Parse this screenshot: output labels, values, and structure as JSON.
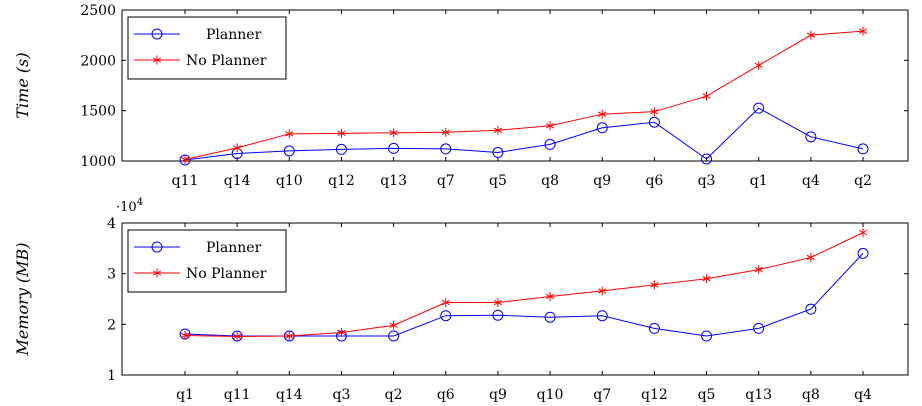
{
  "colors": {
    "planner": "#0000ff",
    "no_planner": "#ff0000",
    "axis": "#000000"
  },
  "chart_data": [
    {
      "type": "line",
      "ylabel": "Time (s)",
      "ylim": [
        1000,
        2500
      ],
      "yticks": [
        1000,
        1500,
        2000,
        2500
      ],
      "ytick_labels": [
        "1000",
        "1500",
        "2000",
        "2500"
      ],
      "y_exponent_label": "",
      "categories": [
        "q11",
        "q14",
        "q10",
        "q12",
        "q13",
        "q7",
        "q5",
        "q8",
        "q9",
        "q6",
        "q3",
        "q1",
        "q4",
        "q2"
      ],
      "legend_position": "top-left",
      "series": [
        {
          "name": "Planner",
          "marker": "circle",
          "color": "#0000ff",
          "values": [
            1010,
            1075,
            1100,
            1115,
            1125,
            1120,
            1085,
            1165,
            1330,
            1385,
            1020,
            1525,
            1240,
            1120
          ]
        },
        {
          "name": "No Planner",
          "marker": "star",
          "color": "#ff0000",
          "values": [
            1015,
            1130,
            1270,
            1275,
            1280,
            1285,
            1305,
            1350,
            1465,
            1490,
            1645,
            1950,
            2250,
            2290
          ]
        }
      ]
    },
    {
      "type": "line",
      "ylabel": "Memory (MB)",
      "ylim": [
        10000,
        40000
      ],
      "yticks": [
        10000,
        20000,
        30000,
        40000
      ],
      "ytick_labels": [
        "1",
        "2",
        "3",
        "4"
      ],
      "y_exponent_label": "·10",
      "y_exponent_power": "4",
      "categories": [
        "q1",
        "q11",
        "q14",
        "q3",
        "q2",
        "q6",
        "q9",
        "q10",
        "q7",
        "q12",
        "q5",
        "q13",
        "q8",
        "q4"
      ],
      "legend_position": "top-left",
      "series": [
        {
          "name": "Planner",
          "marker": "circle",
          "color": "#0000ff",
          "values": [
            18100,
            17700,
            17700,
            17700,
            17700,
            21700,
            21800,
            21400,
            21700,
            19200,
            17700,
            19200,
            23000,
            34000
          ]
        },
        {
          "name": "No Planner",
          "marker": "star",
          "color": "#ff0000",
          "values": [
            17800,
            17600,
            17700,
            18400,
            19800,
            24300,
            24300,
            25500,
            26600,
            27800,
            29000,
            30800,
            33200,
            38100
          ]
        }
      ]
    }
  ]
}
